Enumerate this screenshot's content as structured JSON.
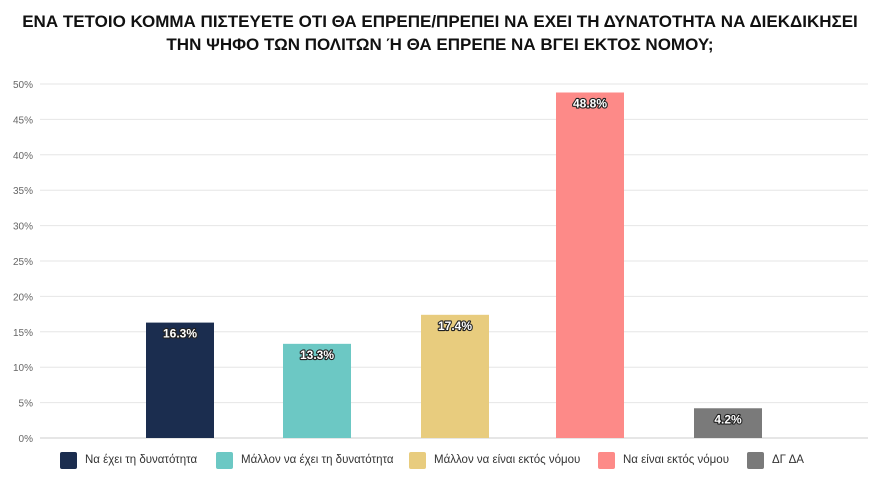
{
  "title": {
    "line1": "ΕΝΑ ΤΕΤΟΙΟ ΚΟΜΜΑ ΠΙΣΤΕΥΕΤΕ ΟΤΙ ΘΑ ΕΠΡΕΠΕ/ΠΡΕΠΕΙ ΝΑ ΕΧΕΙ ΤΗ ΔΥΝΑΤΟΤΗΤΑ ΝΑ ΔΙΕΚΔΙΚΗΣΕΙ",
    "line2": "ΤΗΝ ΨΗΦΟ ΤΩΝ ΠΟΛΙΤΩΝ Ή ΘΑ ΕΠΡΕΠΕ ΝΑ ΒΓΕΙ ΕΚΤΟΣ ΝΟΜΟΥ;"
  },
  "chart_data": {
    "type": "bar",
    "title": "ΕΝΑ ΤΕΤΟΙΟ ΚΟΜΜΑ ΠΙΣΤΕΥΕΤΕ ΟΤΙ ΘΑ ΕΠΡΕΠΕ/ΠΡΕΠΕΙ ΝΑ ΕΧΕΙ ΤΗ ΔΥΝΑΤΟΤΗΤΑ ΝΑ ΔΙΕΚΔΙΚΗΣΕΙ ΤΗΝ ΨΗΦΟ ΤΩΝ ΠΟΛΙΤΩΝ Ή ΘΑ ΕΠΡΕΠΕ ΝΑ ΒΓΕΙ ΕΚΤΟΣ ΝΟΜΟΥ;",
    "categories": [
      "Να έχει τη δυνατότητα",
      "Μάλλον να έχει τη δυνατότητα",
      "Μάλλον να είναι εκτός νόμου",
      "Να είναι εκτός νόμου",
      "ΔΓ ΔΑ"
    ],
    "values": [
      16.3,
      13.3,
      17.4,
      48.8,
      4.2
    ],
    "value_labels": [
      "16.3%",
      "13.3%",
      "17.4%",
      "48.8%",
      "4.2%"
    ],
    "colors": [
      "#1b2d4f",
      "#6cc8c4",
      "#e8cc7e",
      "#fd8a88",
      "#7a7a7a"
    ],
    "ylim": [
      0,
      50
    ],
    "yticks": [
      0,
      5,
      10,
      15,
      20,
      25,
      30,
      35,
      40,
      45,
      50
    ],
    "ytick_labels": [
      "0%",
      "5%",
      "10%",
      "15%",
      "20%",
      "25%",
      "30%",
      "35%",
      "40%",
      "45%",
      "50%"
    ],
    "xlabel": "",
    "ylabel": "",
    "grid": true,
    "legend_position": "bottom"
  }
}
